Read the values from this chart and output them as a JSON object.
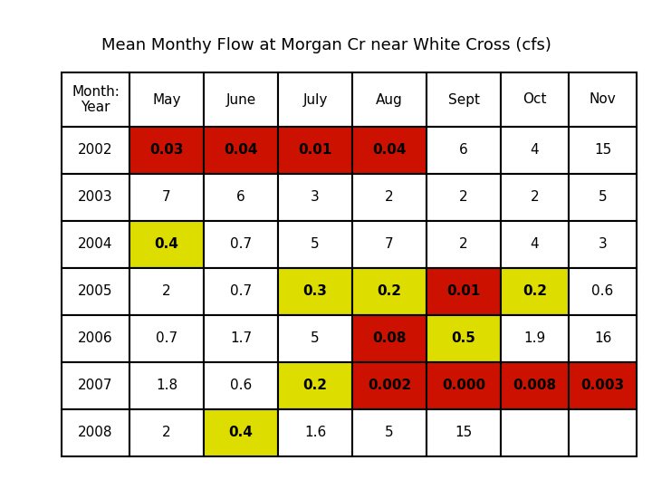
{
  "title": "Mean Monthy Flow at Morgan Cr near White Cross (cfs)",
  "header": [
    "Month:\nYear",
    "May",
    "June",
    "July",
    "Aug",
    "Sept",
    "Oct",
    "Nov"
  ],
  "rows": [
    [
      "2002",
      "0.03",
      "0.04",
      "0.01",
      "0.04",
      "6",
      "4",
      "15"
    ],
    [
      "2003",
      "7",
      "6",
      "3",
      "2",
      "2",
      "2",
      "5"
    ],
    [
      "2004",
      "0.4",
      "0.7",
      "5",
      "7",
      "2",
      "4",
      "3"
    ],
    [
      "2005",
      "2",
      "0.7",
      "0.3",
      "0.2",
      "0.01",
      "0.2",
      "0.6"
    ],
    [
      "2006",
      "0.7",
      "1.7",
      "5",
      "0.08",
      "0.5",
      "1.9",
      "16"
    ],
    [
      "2007",
      "1.8",
      "0.6",
      "0.2",
      "0.002",
      "0.000",
      "0.008",
      "0.003"
    ],
    [
      "2008",
      "2",
      "0.4",
      "1.6",
      "5",
      "15",
      "",
      ""
    ]
  ],
  "cell_colors": [
    [
      "white",
      "red",
      "red",
      "red",
      "red",
      "white",
      "white",
      "white"
    ],
    [
      "white",
      "white",
      "white",
      "white",
      "white",
      "white",
      "white",
      "white"
    ],
    [
      "white",
      "yellow",
      "white",
      "white",
      "white",
      "white",
      "white",
      "white"
    ],
    [
      "white",
      "white",
      "white",
      "yellow",
      "yellow",
      "red",
      "yellow",
      "white"
    ],
    [
      "white",
      "white",
      "white",
      "white",
      "red",
      "yellow",
      "white",
      "white"
    ],
    [
      "white",
      "white",
      "white",
      "yellow",
      "red",
      "red",
      "red",
      "red"
    ],
    [
      "white",
      "white",
      "yellow",
      "white",
      "white",
      "white",
      "white",
      "white"
    ]
  ],
  "red_color": "#CC1100",
  "yellow_color": "#DDDD00",
  "white_color": "#FFFFFF",
  "header_bg": "#FFFFFF",
  "border_color": "#000000",
  "font_size": 11,
  "title_font_size": 13
}
